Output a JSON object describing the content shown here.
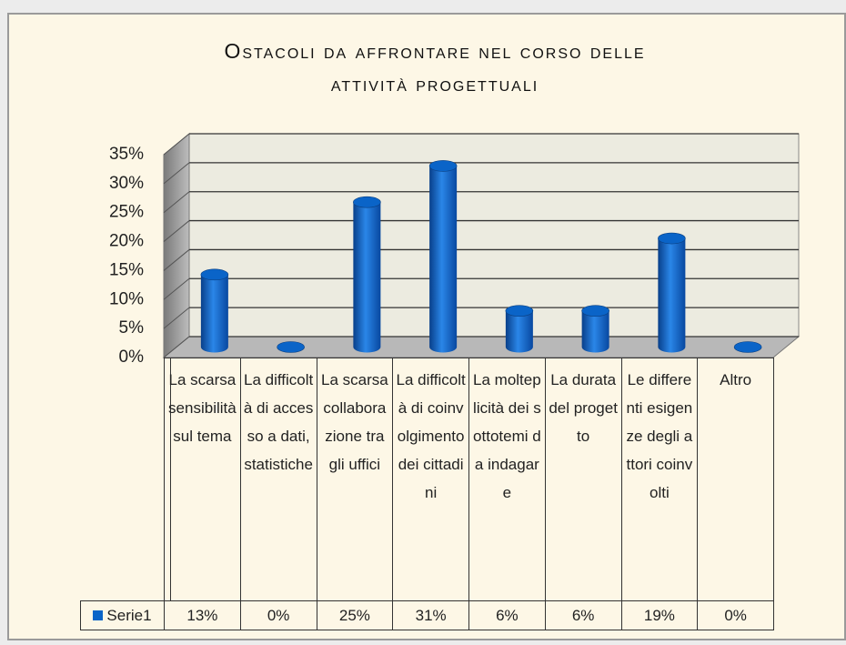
{
  "chart_data": {
    "type": "bar3d",
    "title": "Ostacoli da affrontare nel corso delle attività progettuali",
    "categories": [
      "La scarsa sensibilità sul tema",
      "La difficoltà di accesso a dati, statistiche",
      "La scarsa collaborazione tra gli uffici",
      "La difficoltà di coinvolgimento dei cittadini",
      "La molteplicità dei sottotemi da indagare",
      "La durata del progetto",
      "Le differenti esigenze degli attori coinvolti",
      "Altro"
    ],
    "series": [
      {
        "name": "Serie1",
        "color": "#0a64c8",
        "values": [
          12.5,
          0,
          25,
          31.25,
          6.25,
          6.25,
          18.75,
          0
        ],
        "value_labels": [
          "13%",
          "0%",
          "25%",
          "31%",
          "6%",
          "6%",
          "19%",
          "0%"
        ]
      }
    ],
    "ylim": [
      0,
      35
    ],
    "yticks": [
      {
        "value": 0,
        "label": "0%"
      },
      {
        "value": 5,
        "label": "5%"
      },
      {
        "value": 10,
        "label": "10%"
      },
      {
        "value": 15,
        "label": "15%"
      },
      {
        "value": 20,
        "label": "20%"
      },
      {
        "value": 25,
        "label": "25%"
      },
      {
        "value": 30,
        "label": "30%"
      },
      {
        "value": 35,
        "label": "35%"
      }
    ],
    "grid": true
  }
}
